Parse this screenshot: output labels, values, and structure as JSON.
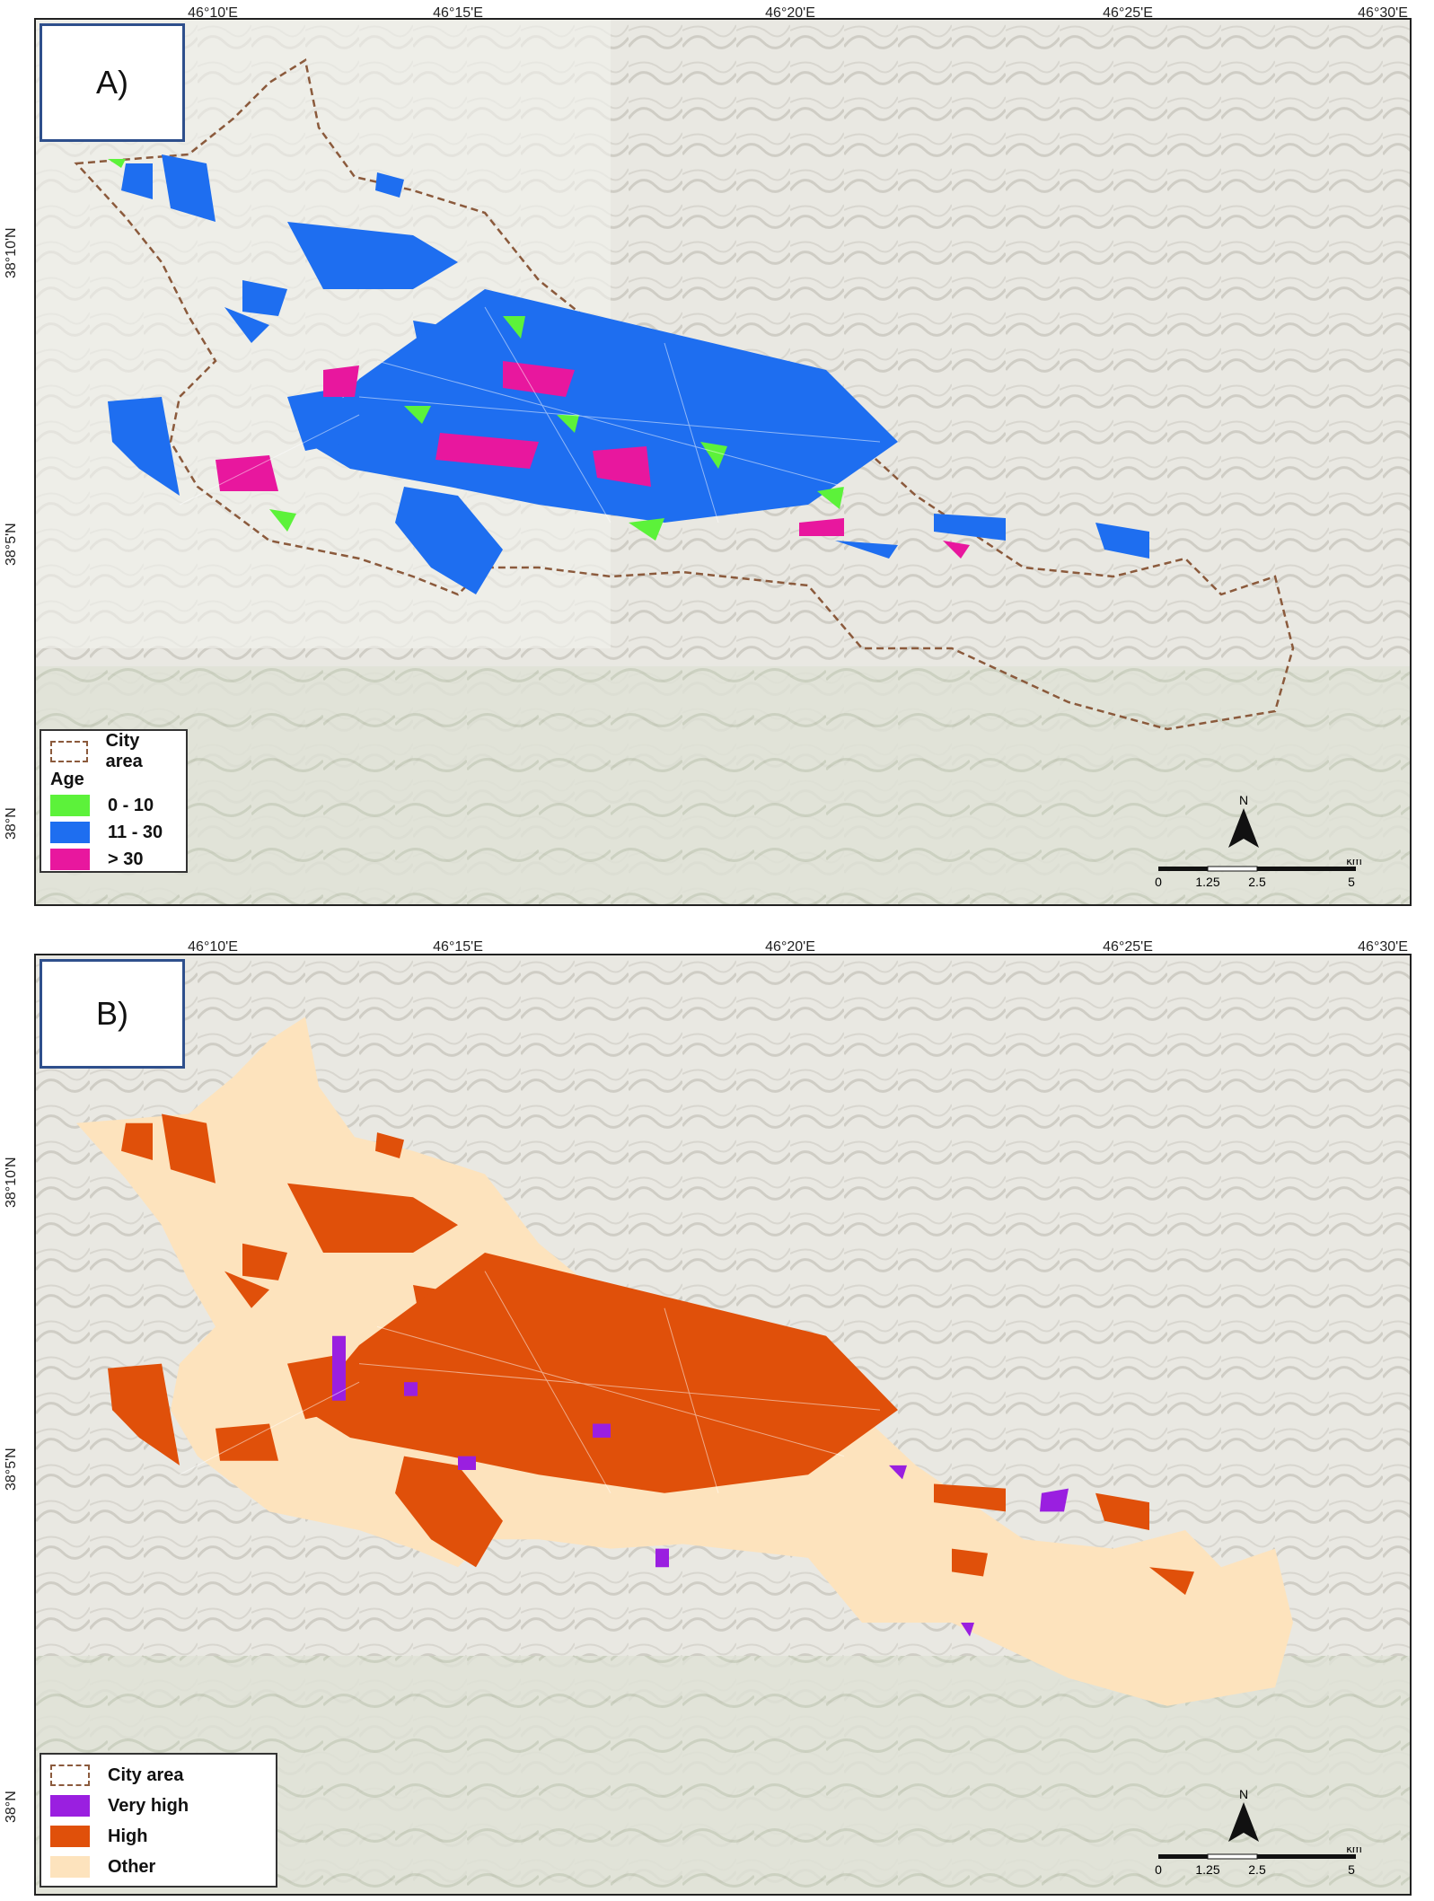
{
  "longitude_labels": [
    "46°10'E",
    "46°15'E",
    "46°20'E",
    "46°25'E",
    "46°30'E"
  ],
  "latitude_labels": [
    "38°10'N",
    "38°5'N",
    "38°N"
  ],
  "panel_a": {
    "label": "A)",
    "legend": {
      "boundary_label": "City area",
      "title": "Age",
      "items": [
        {
          "label": "0 - 10",
          "color": "#5cf23a"
        },
        {
          "label": "11 - 30",
          "color": "#1e6ef0"
        },
        {
          "label": "> 30",
          "color": "#e8179e"
        }
      ]
    }
  },
  "panel_b": {
    "label": "B)",
    "legend": {
      "boundary_label": "City area",
      "items": [
        {
          "label": "Very high",
          "color": "#9a1fe0"
        },
        {
          "label": "High",
          "color": "#e0500a"
        },
        {
          "label": "Other",
          "color": "#fde3bd"
        }
      ]
    }
  },
  "north_arrow": {
    "label": "N",
    "icon": "north-arrow-icon"
  },
  "scale_bar": {
    "ticks": [
      "0",
      "1.25",
      "2.5",
      "5"
    ],
    "unit": "km"
  },
  "colors": {
    "city_boundary": "#8b5a3c",
    "terrain": "#e9e8e2",
    "panel_label_border": "#2e4f8c"
  }
}
